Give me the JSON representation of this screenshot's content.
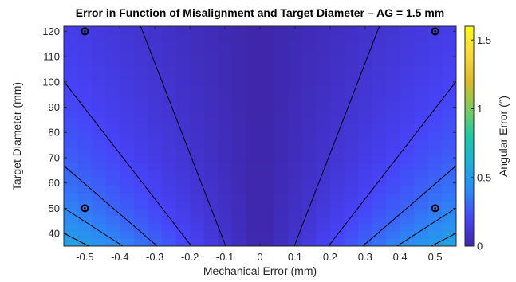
{
  "chart_data": {
    "type": "heatmap",
    "title": "Error in Function of Misalignment and Target Diameter – AG = 1.5 mm",
    "xlabel": "Mechanical Error (mm)",
    "ylabel": "Target Diameter (mm)",
    "colorbar_label": "Angular Error (°)",
    "xlim": [
      -0.56,
      0.56
    ],
    "ylim": [
      35,
      122
    ],
    "clim": [
      0,
      1.6
    ],
    "x_ticks": [
      -0.5,
      -0.4,
      -0.3,
      -0.2,
      -0.1,
      0,
      0.1,
      0.2,
      0.3,
      0.4,
      0.5
    ],
    "x_tick_labels": [
      "-0.5",
      "-0.4",
      "-0.3",
      "-0.2",
      "-0.1",
      "0",
      "0.1",
      "0.2",
      "0.3",
      "0.4",
      "0.5"
    ],
    "y_ticks": [
      40,
      50,
      60,
      70,
      80,
      90,
      100,
      110,
      120
    ],
    "y_tick_labels": [
      "40",
      "50",
      "60",
      "70",
      "80",
      "90",
      "100",
      "110",
      "120"
    ],
    "colorbar_ticks": [
      0,
      0.5,
      1,
      1.5
    ],
    "colorbar_tick_labels": [
      "0",
      "0.5",
      "1",
      "1.5"
    ],
    "colormap": [
      "#3e26a8",
      "#4743f8",
      "#2e87f7",
      "#1bb0da",
      "#1fc8a5",
      "#7fcb5e",
      "#dbba29",
      "#fbd93f",
      "#f9fb15"
    ],
    "cell_x_step": 0.04,
    "cell_y_step": 3,
    "error_model_coefficient": 35.8,
    "contour_levels": [
      0.1,
      0.2,
      0.3,
      0.4,
      0.5,
      0.6,
      0.7,
      0.8
    ],
    "contour_color": "#000000",
    "markers": [
      {
        "x": -0.5,
        "y": 120
      },
      {
        "x": 0.5,
        "y": 120
      },
      {
        "x": -0.5,
        "y": 50
      },
      {
        "x": 0.5,
        "y": 50
      }
    ],
    "grid": false
  }
}
